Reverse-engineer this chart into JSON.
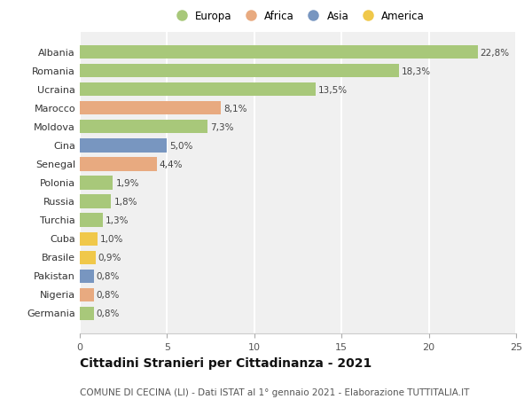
{
  "countries": [
    "Albania",
    "Romania",
    "Ucraina",
    "Marocco",
    "Moldova",
    "Cina",
    "Senegal",
    "Polonia",
    "Russia",
    "Turchia",
    "Cuba",
    "Brasile",
    "Pakistan",
    "Nigeria",
    "Germania"
  ],
  "values": [
    22.8,
    18.3,
    13.5,
    8.1,
    7.3,
    5.0,
    4.4,
    1.9,
    1.8,
    1.3,
    1.0,
    0.9,
    0.8,
    0.8,
    0.8
  ],
  "labels": [
    "22,8%",
    "18,3%",
    "13,5%",
    "8,1%",
    "7,3%",
    "5,0%",
    "4,4%",
    "1,9%",
    "1,8%",
    "1,3%",
    "1,0%",
    "0,9%",
    "0,8%",
    "0,8%",
    "0,8%"
  ],
  "continents": [
    "Europa",
    "Europa",
    "Europa",
    "Africa",
    "Europa",
    "Asia",
    "Africa",
    "Europa",
    "Europa",
    "Europa",
    "America",
    "America",
    "Asia",
    "Africa",
    "Europa"
  ],
  "colors": {
    "Europa": "#a8c87a",
    "Africa": "#e8aa80",
    "Asia": "#7896c0",
    "America": "#f0c84a"
  },
  "legend_order": [
    "Europa",
    "Africa",
    "Asia",
    "America"
  ],
  "title": "Cittadini Stranieri per Cittadinanza - 2021",
  "subtitle": "COMUNE DI CECINA (LI) - Dati ISTAT al 1° gennaio 2021 - Elaborazione TUTTITALIA.IT",
  "xlim": [
    0,
    25
  ],
  "xticks": [
    0,
    5,
    10,
    15,
    20,
    25
  ],
  "plot_bg": "#f0f0f0",
  "fig_bg": "#ffffff",
  "grid_color": "#ffffff",
  "title_fontsize": 10,
  "subtitle_fontsize": 7.5,
  "label_fontsize": 7.5,
  "tick_fontsize": 8,
  "legend_fontsize": 8.5
}
